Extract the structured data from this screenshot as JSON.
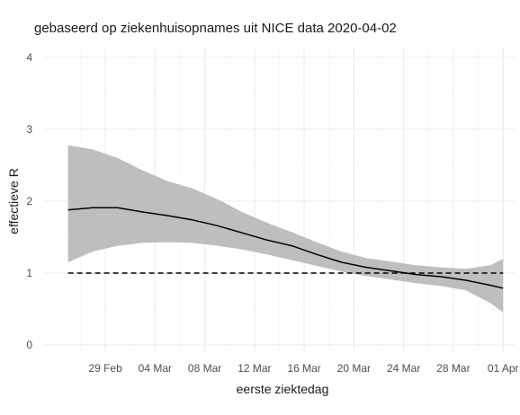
{
  "chart_data": {
    "type": "line",
    "title": "gebaseerd op ziekenhuisopnames uit NICE data 2020-04-02",
    "xlabel": "eerste ziektedag",
    "ylabel": "effectieve R",
    "x_ticks": [
      "29 Feb",
      "04 Mar",
      "08 Mar",
      "12 Mar",
      "16 Mar",
      "20 Mar",
      "24 Mar",
      "28 Mar",
      "01 Apr"
    ],
    "y_ticks": [
      0,
      1,
      2,
      3,
      4
    ],
    "ylim": [
      -0.1,
      4.15
    ],
    "xlim": [
      "2020-02-24",
      "2020-04-02"
    ],
    "grid": true,
    "reference_line": {
      "y": 1,
      "style": "dashed",
      "x_range": [
        "2020-02-26",
        "2020-04-01"
      ]
    },
    "series": [
      {
        "line_color": "#000000",
        "band_color": "#bebebe",
        "x": [
          "2020-02-26",
          "2020-02-28",
          "2020-03-01",
          "2020-03-03",
          "2020-03-05",
          "2020-03-07",
          "2020-03-09",
          "2020-03-11",
          "2020-03-13",
          "2020-03-15",
          "2020-03-17",
          "2020-03-19",
          "2020-03-21",
          "2020-03-23",
          "2020-03-25",
          "2020-03-27",
          "2020-03-29",
          "2020-03-31",
          "2020-04-01"
        ],
        "y": [
          1.88,
          1.91,
          1.91,
          1.85,
          1.8,
          1.74,
          1.66,
          1.56,
          1.46,
          1.38,
          1.26,
          1.15,
          1.08,
          1.03,
          0.98,
          0.95,
          0.9,
          0.83,
          0.79
        ],
        "lower": [
          1.15,
          1.3,
          1.38,
          1.42,
          1.43,
          1.42,
          1.38,
          1.33,
          1.26,
          1.18,
          1.1,
          1.02,
          0.96,
          0.91,
          0.86,
          0.82,
          0.76,
          0.58,
          0.45
        ],
        "upper": [
          2.78,
          2.72,
          2.6,
          2.43,
          2.28,
          2.18,
          2.03,
          1.85,
          1.7,
          1.57,
          1.43,
          1.3,
          1.21,
          1.16,
          1.11,
          1.08,
          1.06,
          1.11,
          1.2
        ]
      }
    ]
  }
}
